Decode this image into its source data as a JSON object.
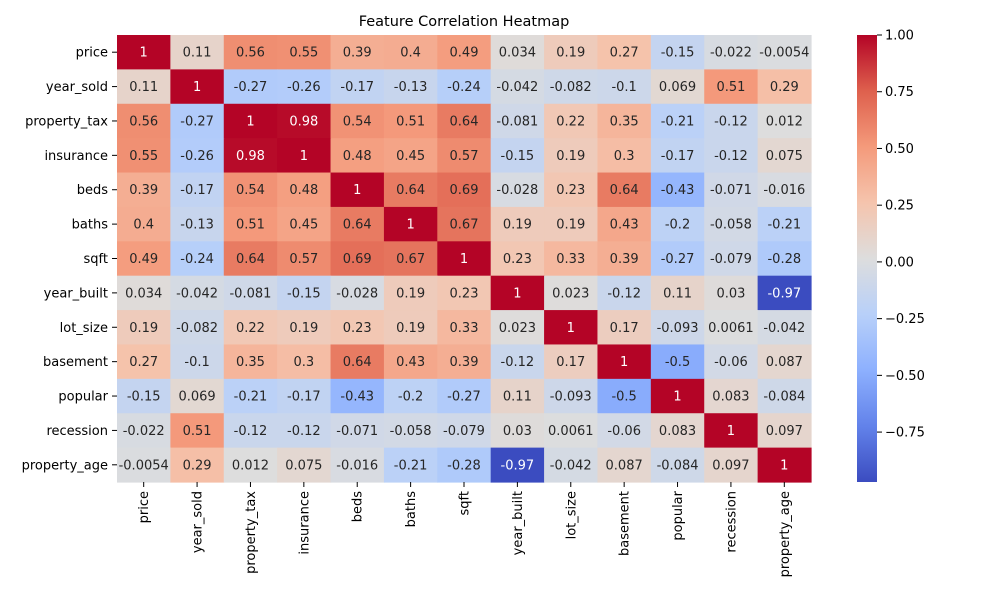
{
  "chart_data": {
    "type": "heatmap",
    "title": "Feature Correlation Heatmap",
    "xlabel": "",
    "ylabel": "",
    "labels": [
      "price",
      "year_sold",
      "property_tax",
      "insurance",
      "beds",
      "baths",
      "sqft",
      "year_built",
      "lot_size",
      "basement",
      "popular",
      "recession",
      "property_age"
    ],
    "matrix": [
      [
        "1",
        "0.11",
        "0.56",
        "0.55",
        "0.39",
        "0.4",
        "0.49",
        "0.034",
        "0.19",
        "0.27",
        "-0.15",
        "-0.022",
        "-0.0054"
      ],
      [
        "0.11",
        "1",
        "-0.27",
        "-0.26",
        "-0.17",
        "-0.13",
        "-0.24",
        "-0.042",
        "-0.082",
        "-0.1",
        "0.069",
        "0.51",
        "0.29"
      ],
      [
        "0.56",
        "-0.27",
        "1",
        "0.98",
        "0.54",
        "0.51",
        "0.64",
        "-0.081",
        "0.22",
        "0.35",
        "-0.21",
        "-0.12",
        "0.012"
      ],
      [
        "0.55",
        "-0.26",
        "0.98",
        "1",
        "0.48",
        "0.45",
        "0.57",
        "-0.15",
        "0.19",
        "0.3",
        "-0.17",
        "-0.12",
        "0.075"
      ],
      [
        "0.39",
        "-0.17",
        "0.54",
        "0.48",
        "1",
        "0.64",
        "0.69",
        "-0.028",
        "0.23",
        "0.64",
        "-0.43",
        "-0.071",
        "-0.016"
      ],
      [
        "0.4",
        "-0.13",
        "0.51",
        "0.45",
        "0.64",
        "1",
        "0.67",
        "0.19",
        "0.19",
        "0.43",
        "-0.2",
        "-0.058",
        "-0.21"
      ],
      [
        "0.49",
        "-0.24",
        "0.64",
        "0.57",
        "0.69",
        "0.67",
        "1",
        "0.23",
        "0.33",
        "0.39",
        "-0.27",
        "-0.079",
        "-0.28"
      ],
      [
        "0.034",
        "-0.042",
        "-0.081",
        "-0.15",
        "-0.028",
        "0.19",
        "0.23",
        "1",
        "0.023",
        "-0.12",
        "0.11",
        "0.03",
        "-0.97"
      ],
      [
        "0.19",
        "-0.082",
        "0.22",
        "0.19",
        "0.23",
        "0.19",
        "0.33",
        "0.023",
        "1",
        "0.17",
        "-0.093",
        "0.0061",
        "-0.042"
      ],
      [
        "0.27",
        "-0.1",
        "0.35",
        "0.3",
        "0.64",
        "0.43",
        "0.39",
        "-0.12",
        "0.17",
        "1",
        "-0.5",
        "-0.06",
        "0.087"
      ],
      [
        "-0.15",
        "0.069",
        "-0.21",
        "-0.17",
        "-0.43",
        "-0.2",
        "-0.27",
        "0.11",
        "-0.093",
        "-0.5",
        "1",
        "0.083",
        "-0.084"
      ],
      [
        "-0.022",
        "0.51",
        "-0.12",
        "-0.12",
        "-0.071",
        "-0.058",
        "-0.079",
        "0.03",
        "0.0061",
        "-0.06",
        "0.083",
        "1",
        "0.097"
      ],
      [
        "-0.0054",
        "0.29",
        "0.012",
        "0.075",
        "-0.016",
        "-0.21",
        "-0.28",
        "-0.97",
        "-0.042",
        "0.087",
        "-0.084",
        "0.097",
        "1"
      ]
    ],
    "colormap": "coolwarm",
    "color_range": [
      -0.97,
      1.0
    ],
    "colorbar_ticks": [
      "1.00",
      "0.75",
      "0.50",
      "0.25",
      "0.00",
      "−0.25",
      "−0.50",
      "−0.75"
    ],
    "colorbar_tick_values": [
      1.0,
      0.75,
      0.5,
      0.25,
      0.0,
      -0.25,
      -0.5,
      -0.75
    ],
    "grid": false,
    "legend": "colorbar-right"
  }
}
